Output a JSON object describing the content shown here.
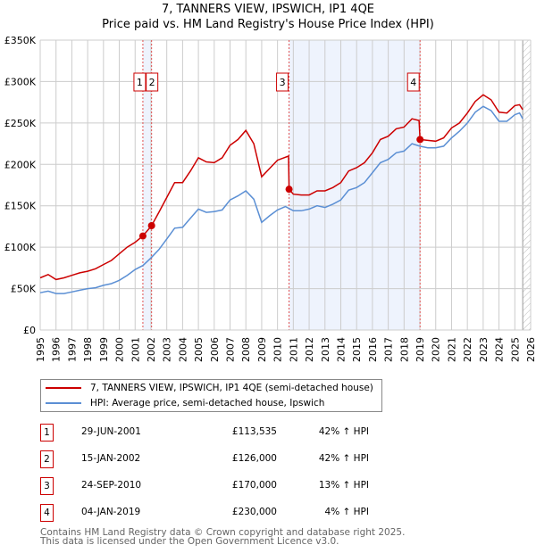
{
  "title_line1": "7, TANNERS VIEW, IPSWICH, IP1 4QE",
  "title_line2": "Price paid vs. HM Land Registry's House Price Index (HPI)",
  "chart_data": {
    "type": "line",
    "ylabel": "",
    "xlabel": "",
    "xlim": [
      1995,
      2026
    ],
    "ylim": [
      0,
      350000
    ],
    "y_ticks": [
      0,
      50000,
      100000,
      150000,
      200000,
      250000,
      300000,
      350000
    ],
    "y_tick_labels": [
      "£0",
      "£50K",
      "£100K",
      "£150K",
      "£200K",
      "£250K",
      "£300K",
      "£350K"
    ],
    "x_ticks": [
      "1995",
      "1996",
      "1997",
      "1998",
      "1999",
      "2000",
      "2001",
      "2002",
      "2003",
      "2004",
      "2005",
      "2006",
      "2007",
      "2008",
      "2009",
      "2010",
      "2011",
      "2012",
      "2013",
      "2014",
      "2015",
      "2016",
      "2017",
      "2018",
      "2019",
      "2020",
      "2021",
      "2022",
      "2023",
      "2024",
      "2025",
      "2026"
    ],
    "grid": true,
    "future_hatch_from": 2025.5,
    "shaded_ranges": [
      [
        2001.49,
        2002.04
      ],
      [
        2010.73,
        2019.01
      ]
    ],
    "series": [
      {
        "name": "7, TANNERS VIEW, IPSWICH, IP1 4QE (semi-detached house)",
        "color": "#cc0000",
        "x": [
          1995,
          1995.5,
          1996,
          1996.5,
          1997,
          1997.5,
          1998,
          1998.5,
          1999,
          1999.5,
          2000,
          2000.5,
          2001,
          2001.49,
          2002.04,
          2002.5,
          2003,
          2003.5,
          2004,
          2004.5,
          2005,
          2005.5,
          2006,
          2006.5,
          2007,
          2007.5,
          2008,
          2008.5,
          2009,
          2009.5,
          2010,
          2010.7,
          2010.73,
          2011,
          2011.5,
          2012,
          2012.5,
          2013,
          2013.5,
          2014,
          2014.5,
          2015,
          2015.5,
          2016,
          2016.5,
          2017,
          2017.5,
          2018,
          2018.5,
          2018.95,
          2019.01,
          2019.5,
          2020,
          2020.5,
          2021,
          2021.5,
          2022,
          2022.5,
          2023,
          2023.5,
          2024,
          2024.5,
          2025,
          2025.3,
          2025.5
        ],
        "y": [
          63000,
          67000,
          61000,
          63000,
          66000,
          69000,
          71000,
          74000,
          79000,
          84000,
          92000,
          100000,
          106000,
          113535,
          126000,
          142000,
          160000,
          178000,
          178000,
          192000,
          208000,
          203000,
          202000,
          208000,
          223000,
          230000,
          241000,
          225000,
          185000,
          195000,
          205000,
          210000,
          170000,
          164000,
          163000,
          163000,
          168000,
          168000,
          172000,
          178000,
          192000,
          196000,
          202000,
          214000,
          230000,
          234000,
          243000,
          245000,
          255000,
          253000,
          230000,
          229000,
          228000,
          232000,
          244000,
          250000,
          262000,
          276000,
          284000,
          278000,
          263000,
          262000,
          271000,
          272000,
          266000
        ]
      },
      {
        "name": "HPI: Average price, semi-detached house, Ipswich",
        "color": "#5b8fd4",
        "x": [
          1995,
          1995.5,
          1996,
          1996.5,
          1997,
          1997.5,
          1998,
          1998.5,
          1999,
          1999.5,
          2000,
          2000.5,
          2001,
          2001.5,
          2002,
          2002.5,
          2003,
          2003.5,
          2004,
          2004.5,
          2005,
          2005.5,
          2006,
          2006.5,
          2007,
          2007.5,
          2008,
          2008.5,
          2009,
          2009.5,
          2010,
          2010.5,
          2011,
          2011.5,
          2012,
          2012.5,
          2013,
          2013.5,
          2014,
          2014.5,
          2015,
          2015.5,
          2016,
          2016.5,
          2017,
          2017.5,
          2018,
          2018.5,
          2019,
          2019.5,
          2020,
          2020.5,
          2021,
          2021.5,
          2022,
          2022.5,
          2023,
          2023.5,
          2024,
          2024.5,
          2025,
          2025.3,
          2025.5
        ],
        "y": [
          45000,
          47000,
          44000,
          44000,
          46000,
          48000,
          50000,
          51000,
          54000,
          56000,
          60000,
          66000,
          73000,
          78000,
          87000,
          97000,
          110000,
          123000,
          124000,
          135000,
          146000,
          142000,
          143000,
          145000,
          157000,
          162000,
          168000,
          158000,
          130000,
          138000,
          145000,
          149000,
          144000,
          144000,
          146000,
          150000,
          148000,
          152000,
          157000,
          169000,
          172000,
          178000,
          190000,
          202000,
          206000,
          214000,
          216000,
          225000,
          222000,
          220000,
          220000,
          222000,
          232000,
          240000,
          250000,
          263000,
          270000,
          265000,
          252000,
          252000,
          260000,
          262000,
          255000
        ]
      }
    ],
    "sales": [
      {
        "label": "1",
        "x": 2001.49,
        "date": "29-JUN-2001",
        "price": 113535,
        "price_text": "£113,535",
        "hpi_text": "42% ↑ HPI"
      },
      {
        "label": "2",
        "x": 2002.04,
        "date": "15-JAN-2002",
        "price": 126000,
        "price_text": "£126,000",
        "hpi_text": "42% ↑ HPI"
      },
      {
        "label": "3",
        "x": 2010.73,
        "date": "24-SEP-2010",
        "price": 170000,
        "price_text": "£170,000",
        "hpi_text": "13% ↑ HPI"
      },
      {
        "label": "4",
        "x": 2019.01,
        "date": "04-JAN-2019",
        "price": 230000,
        "price_text": "£230,000",
        "hpi_text": "4% ↑ HPI"
      }
    ]
  },
  "legend": {
    "property": "7, TANNERS VIEW, IPSWICH, IP1 4QE (semi-detached house)",
    "hpi": "HPI: Average price, semi-detached house, Ipswich"
  },
  "footer": {
    "line1": "Contains HM Land Registry data © Crown copyright and database right 2025.",
    "line2": "This data is licensed under the Open Government Licence v3.0."
  }
}
